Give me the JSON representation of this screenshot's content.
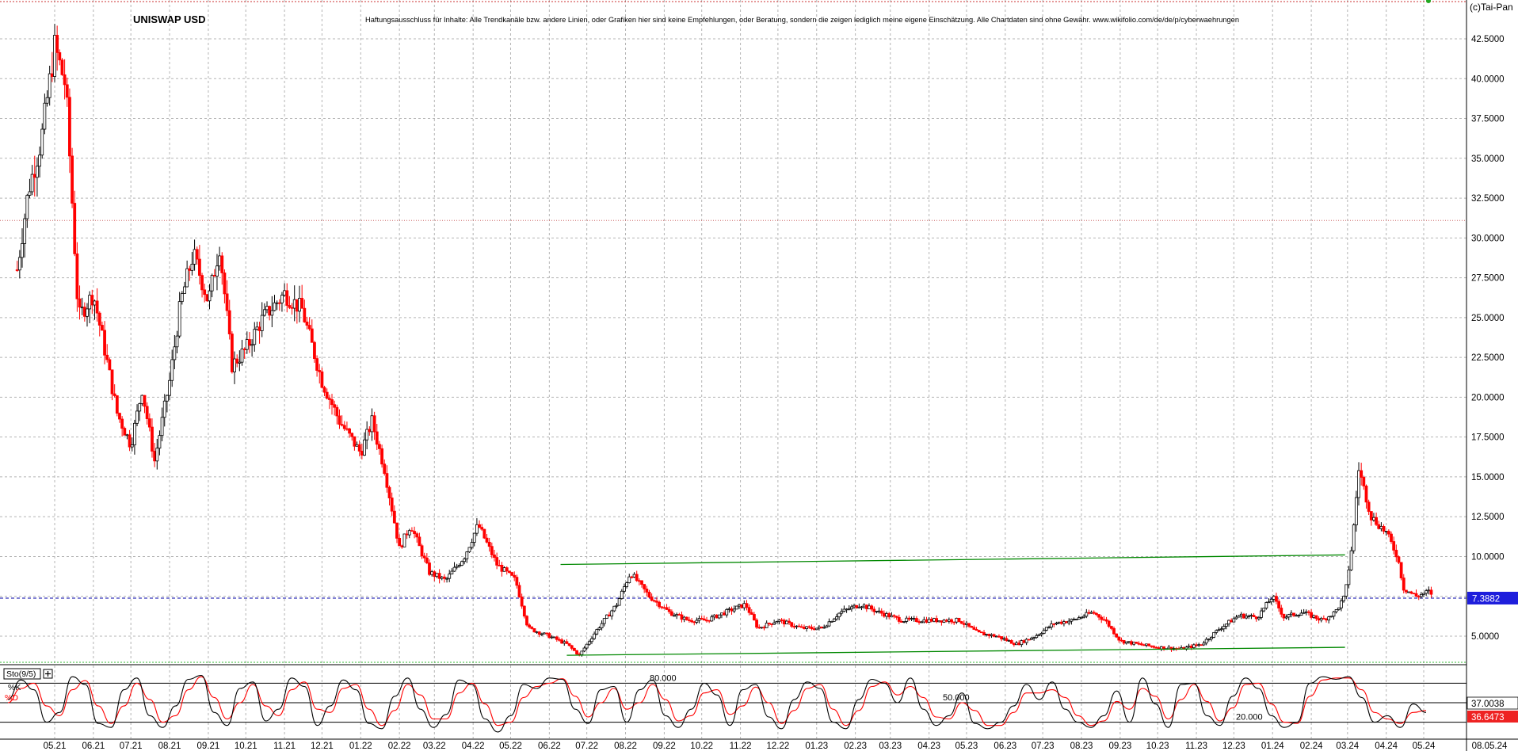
{
  "title": "UNISWAP USD",
  "disclaimer": "Haftungsausschluss für Inhalte: Alle Trendkanäle bzw. andere Linien, oder Grafiken hier sind keine Empfehlungen, oder Beratung, sondern die zeigen lediglich meine eigene Einschätzung. Alle Chartdaten sind ohne Gewähr.  www.wikifolio.com/de/de/p/cyberwaehrungen",
  "copyright": "(c)Tai-Pan",
  "colors": {
    "up_candle": "#000000",
    "down_candle": "#ff0000",
    "trendline": "#008800",
    "current_price_line": "#0000aa",
    "resistance_line": "#cc6666",
    "grid": "#b4b4b4",
    "price_badge": "#1e1edc",
    "stoch_k": "#000000",
    "stoch_d": "#ff0000"
  },
  "chart_data": [
    {
      "type": "candlestick",
      "title": "UNISWAP USD",
      "ylim": [
        3.5,
        43.0
      ],
      "grid": true,
      "y_ticks": [
        "42.5000",
        "40.0000",
        "37.5000",
        "35.0000",
        "32.5000",
        "30.0000",
        "27.5000",
        "25.0000",
        "22.5000",
        "20.0000",
        "17.5000",
        "15.0000",
        "12.5000",
        "10.0000",
        "7.5000",
        "5.0000"
      ],
      "x_ticks": [
        "05.21",
        "06.21",
        "07.21",
        "08.21",
        "09.21",
        "10.21",
        "11.21",
        "12.21",
        "01.22",
        "02.22",
        "03.22",
        "04.22",
        "05.22",
        "06.22",
        "07.22",
        "08.22",
        "09.22",
        "10.22",
        "11.22",
        "12.22",
        "01.23",
        "02.23",
        "03.23",
        "04.23",
        "05.23",
        "06.23",
        "07.23",
        "08.23",
        "09.23",
        "10.23",
        "11.23",
        "12.23",
        "01.24",
        "02.24",
        "03.24",
        "04.24",
        "05.24",
        "08.05.24"
      ],
      "last_price": "7.3882",
      "close_series": [
        {
          "x": "2021-04-01",
          "y": 28.0
        },
        {
          "x": "2021-04-10",
          "y": 33.0
        },
        {
          "x": "2021-04-20",
          "y": 36.0
        },
        {
          "x": "2021-05-01",
          "y": 42.0
        },
        {
          "x": "2021-05-10",
          "y": 39.5
        },
        {
          "x": "2021-05-20",
          "y": 25.0
        },
        {
          "x": "2021-06-01",
          "y": 26.5
        },
        {
          "x": "2021-06-10",
          "y": 23.0
        },
        {
          "x": "2021-06-20",
          "y": 19.0
        },
        {
          "x": "2021-07-01",
          "y": 17.0
        },
        {
          "x": "2021-07-10",
          "y": 20.5
        },
        {
          "x": "2021-07-20",
          "y": 16.0
        },
        {
          "x": "2021-08-01",
          "y": 21.0
        },
        {
          "x": "2021-08-10",
          "y": 26.0
        },
        {
          "x": "2021-08-20",
          "y": 29.0
        },
        {
          "x": "2021-09-01",
          "y": 26.0
        },
        {
          "x": "2021-09-10",
          "y": 29.5
        },
        {
          "x": "2021-09-20",
          "y": 22.0
        },
        {
          "x": "2021-10-01",
          "y": 23.0
        },
        {
          "x": "2021-10-15",
          "y": 25.0
        },
        {
          "x": "2021-11-01",
          "y": 26.5
        },
        {
          "x": "2021-11-15",
          "y": 25.5
        },
        {
          "x": "2021-12-01",
          "y": 21.0
        },
        {
          "x": "2021-12-15",
          "y": 18.5
        },
        {
          "x": "2022-01-01",
          "y": 16.5
        },
        {
          "x": "2022-01-10",
          "y": 18.5
        },
        {
          "x": "2022-01-20",
          "y": 15.5
        },
        {
          "x": "2022-02-01",
          "y": 10.5
        },
        {
          "x": "2022-02-10",
          "y": 12.0
        },
        {
          "x": "2022-02-25",
          "y": 9.0
        },
        {
          "x": "2022-03-10",
          "y": 8.5
        },
        {
          "x": "2022-03-25",
          "y": 10.0
        },
        {
          "x": "2022-04-05",
          "y": 12.0
        },
        {
          "x": "2022-04-20",
          "y": 9.5
        },
        {
          "x": "2022-05-05",
          "y": 8.5
        },
        {
          "x": "2022-05-15",
          "y": 5.5
        },
        {
          "x": "2022-06-01",
          "y": 5.0
        },
        {
          "x": "2022-06-15",
          "y": 4.5
        },
        {
          "x": "2022-06-25",
          "y": 3.8
        },
        {
          "x": "2022-07-10",
          "y": 5.5
        },
        {
          "x": "2022-07-25",
          "y": 7.0
        },
        {
          "x": "2022-08-05",
          "y": 9.0
        },
        {
          "x": "2022-08-20",
          "y": 7.5
        },
        {
          "x": "2022-09-05",
          "y": 6.5
        },
        {
          "x": "2022-09-20",
          "y": 6.0
        },
        {
          "x": "2022-10-05",
          "y": 6.0
        },
        {
          "x": "2022-10-20",
          "y": 6.5
        },
        {
          "x": "2022-11-05",
          "y": 7.0
        },
        {
          "x": "2022-11-15",
          "y": 5.5
        },
        {
          "x": "2022-12-01",
          "y": 6.0
        },
        {
          "x": "2022-12-20",
          "y": 5.5
        },
        {
          "x": "2023-01-05",
          "y": 5.5
        },
        {
          "x": "2023-01-20",
          "y": 6.5
        },
        {
          "x": "2023-02-05",
          "y": 7.0
        },
        {
          "x": "2023-02-20",
          "y": 6.5
        },
        {
          "x": "2023-03-10",
          "y": 6.0
        },
        {
          "x": "2023-03-25",
          "y": 6.0
        },
        {
          "x": "2023-04-10",
          "y": 6.0
        },
        {
          "x": "2023-04-25",
          "y": 6.0
        },
        {
          "x": "2023-05-10",
          "y": 5.2
        },
        {
          "x": "2023-05-25",
          "y": 5.0
        },
        {
          "x": "2023-06-10",
          "y": 4.5
        },
        {
          "x": "2023-06-25",
          "y": 5.0
        },
        {
          "x": "2023-07-10",
          "y": 5.8
        },
        {
          "x": "2023-07-25",
          "y": 6.0
        },
        {
          "x": "2023-08-10",
          "y": 6.5
        },
        {
          "x": "2023-08-20",
          "y": 6.0
        },
        {
          "x": "2023-09-01",
          "y": 4.7
        },
        {
          "x": "2023-09-15",
          "y": 4.5
        },
        {
          "x": "2023-10-01",
          "y": 4.3
        },
        {
          "x": "2023-10-20",
          "y": 4.2
        },
        {
          "x": "2023-11-05",
          "y": 4.5
        },
        {
          "x": "2023-11-20",
          "y": 5.5
        },
        {
          "x": "2023-12-05",
          "y": 6.3
        },
        {
          "x": "2023-12-20",
          "y": 6.2
        },
        {
          "x": "2024-01-01",
          "y": 7.5
        },
        {
          "x": "2024-01-10",
          "y": 6.2
        },
        {
          "x": "2024-01-25",
          "y": 6.5
        },
        {
          "x": "2024-02-10",
          "y": 6.0
        },
        {
          "x": "2024-02-20",
          "y": 6.5
        },
        {
          "x": "2024-02-28",
          "y": 7.5
        },
        {
          "x": "2024-03-05",
          "y": 11.0
        },
        {
          "x": "2024-03-10",
          "y": 15.5
        },
        {
          "x": "2024-03-20",
          "y": 12.5
        },
        {
          "x": "2024-04-01",
          "y": 11.5
        },
        {
          "x": "2024-04-10",
          "y": 10.0
        },
        {
          "x": "2024-04-15",
          "y": 8.0
        },
        {
          "x": "2024-04-25",
          "y": 7.5
        },
        {
          "x": "2024-05-05",
          "y": 7.8
        },
        {
          "x": "2024-05-08",
          "y": 7.39
        }
      ],
      "trendlines": [
        {
          "from": {
            "x": "2022-06-10",
            "y": 9.5
          },
          "to": {
            "x": "2024-02-28",
            "y": 10.1
          }
        },
        {
          "from": {
            "x": "2022-06-15",
            "y": 3.8
          },
          "to": {
            "x": "2024-02-28",
            "y": 4.3
          }
        }
      ],
      "horizontal_lines": [
        7.3882,
        31.1,
        3.55
      ]
    },
    {
      "type": "line",
      "title": "Sto(9/5)",
      "legend": [
        "%K",
        "%D"
      ],
      "ylim": [
        0,
        100
      ],
      "levels": [
        "80.000",
        "50.000",
        "20.000"
      ],
      "last_values": {
        "k": "37.0038",
        "d": "36.6473"
      },
      "series": [
        {
          "name": "%K",
          "values": [
            55,
            85,
            70,
            20,
            35,
            90,
            78,
            18,
            12,
            70,
            88,
            30,
            12,
            45,
            86,
            92,
            35,
            15,
            72,
            82,
            22,
            40,
            88,
            75,
            15,
            45,
            85,
            70,
            18,
            10,
            60,
            88,
            40,
            12,
            32,
            85,
            78,
            25,
            5,
            30,
            78,
            72,
            88,
            86,
            40,
            18,
            70,
            75,
            20,
            70,
            85,
            30,
            12,
            40,
            80,
            62,
            15,
            70,
            78,
            28,
            10,
            55,
            82,
            72,
            20,
            10,
            55,
            86,
            80,
            50,
            88,
            40,
            15,
            30,
            65,
            18,
            10,
            20,
            45,
            78,
            55,
            82,
            40,
            20,
            12,
            30,
            68,
            20,
            88,
            48,
            12,
            78,
            80,
            30,
            15,
            60,
            88,
            72,
            30,
            12,
            20,
            80,
            90,
            86,
            90,
            58,
            20,
            30,
            12,
            48,
            35
          ]
        },
        {
          "name": "%D",
          "values": [
            50,
            72,
            80,
            45,
            30,
            70,
            84,
            45,
            18,
            45,
            80,
            55,
            20,
            30,
            70,
            90,
            58,
            25,
            50,
            78,
            45,
            30,
            70,
            82,
            40,
            35,
            72,
            78,
            40,
            15,
            38,
            78,
            62,
            25,
            25,
            65,
            80,
            48,
            15,
            20,
            58,
            75,
            80,
            87,
            60,
            28,
            50,
            72,
            40,
            50,
            78,
            55,
            22,
            30,
            65,
            70,
            32,
            45,
            74,
            50,
            18,
            38,
            72,
            78,
            40,
            15,
            38,
            75,
            82,
            62,
            75,
            58,
            28,
            25,
            50,
            38,
            15,
            15,
            35,
            65,
            65,
            70,
            58,
            30,
            15,
            22,
            52,
            40,
            72,
            60,
            25,
            55,
            78,
            52,
            22,
            42,
            78,
            80,
            48,
            20,
            18,
            60,
            85,
            88,
            88,
            70,
            35,
            25,
            18,
            35,
            38
          ]
        }
      ]
    }
  ]
}
